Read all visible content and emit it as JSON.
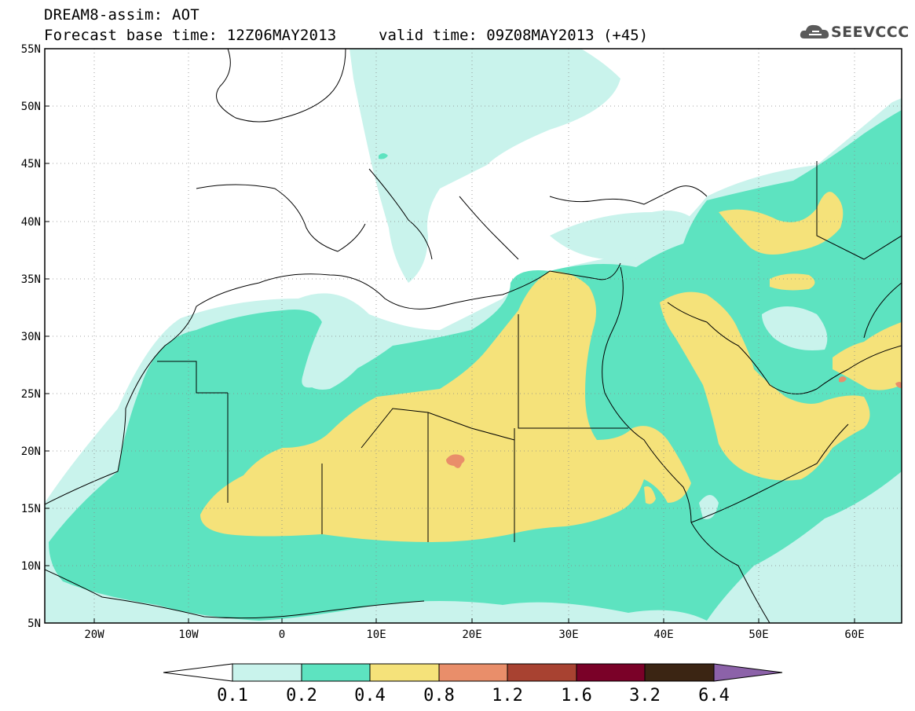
{
  "header": {
    "title_line1": "DREAM8-assim: AOT",
    "title_line2": "Forecast base time: 12Z06MAY2013",
    "valid_time": "valid time: 09Z08MAY2013 (+45)"
  },
  "logo": {
    "text": "SEEVCCC",
    "icon": "cloud-icon"
  },
  "map": {
    "lat_labels": [
      "55N",
      "50N",
      "45N",
      "40N",
      "35N",
      "30N",
      "25N",
      "20N",
      "15N",
      "10N",
      "5N"
    ],
    "lon_labels": [
      "20W",
      "10W",
      "0",
      "10E",
      "20E",
      "30E",
      "40E",
      "50E",
      "60E"
    ],
    "extent": {
      "lon_min": -25,
      "lon_max": 65,
      "lat_min": 5,
      "lat_max": 55
    },
    "grid": "dotted"
  },
  "colorbar": {
    "labels": [
      "0.1",
      "0.2",
      "0.4",
      "0.8",
      "1.2",
      "1.6",
      "3.2",
      "6.4"
    ],
    "colors": [
      "#ffffff",
      "#c9f3ec",
      "#5de3c0",
      "#f5e27a",
      "#e98e6a",
      "#a84231",
      "#7a0128",
      "#3b2513",
      "#8c62a9"
    ]
  }
}
